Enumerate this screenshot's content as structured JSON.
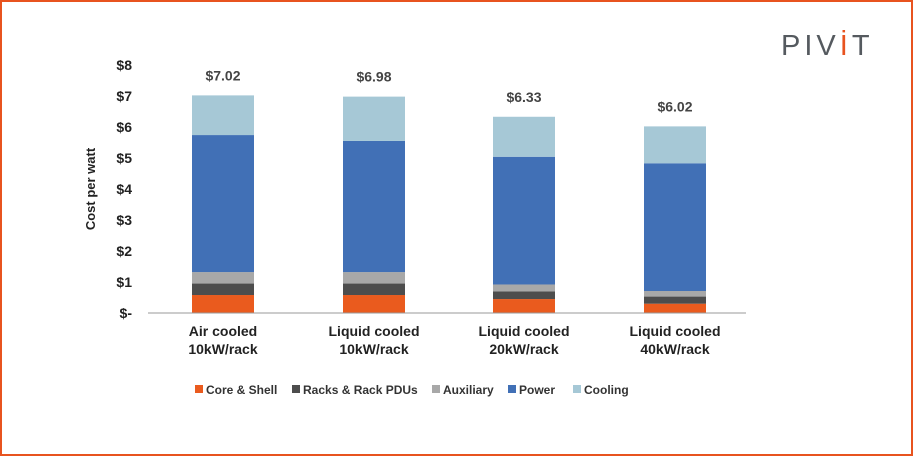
{
  "brand": {
    "logo_text_left": "PIV",
    "logo_mark": "İ",
    "logo_text_right": "T",
    "logo_accent": "#e8531f"
  },
  "chart_data": {
    "type": "bar",
    "stacked": true,
    "ylabel": "Cost per watt",
    "xlabel": "",
    "ylim": [
      0,
      8
    ],
    "y_ticks": [
      "$-",
      "$1",
      "$2",
      "$3",
      "$4",
      "$5",
      "$6",
      "$7",
      "$8"
    ],
    "grid": false,
    "legend_position": "bottom",
    "categories": [
      [
        "Air cooled",
        "10kW/rack"
      ],
      [
        "Liquid cooled",
        "10kW/rack"
      ],
      [
        "Liquid cooled",
        "20kW/rack"
      ],
      [
        "Liquid cooled",
        "40kW/rack"
      ]
    ],
    "totals": [
      "$7.02",
      "$6.98",
      "$6.33",
      "$6.02"
    ],
    "series": [
      {
        "name": "Core & Shell",
        "color": "#ea5b1e",
        "values": [
          0.58,
          0.58,
          0.45,
          0.3
        ]
      },
      {
        "name": "Racks & Rack PDUs",
        "color": "#4d4d4d",
        "values": [
          0.37,
          0.37,
          0.25,
          0.23
        ]
      },
      {
        "name": "Auxiliary",
        "color": "#a8a8a8",
        "values": [
          0.37,
          0.37,
          0.22,
          0.18
        ]
      },
      {
        "name": "Power",
        "color": "#4170b6",
        "values": [
          4.42,
          4.23,
          4.12,
          4.12
        ]
      },
      {
        "name": "Cooling",
        "color": "#a6c8d6",
        "values": [
          1.28,
          1.43,
          1.29,
          1.19
        ]
      }
    ]
  }
}
